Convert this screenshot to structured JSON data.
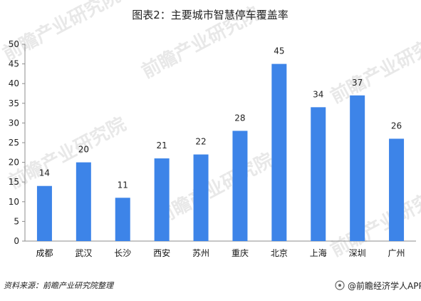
{
  "chart_data": {
    "type": "bar",
    "title": "图表2：主要城市智慧停车覆盖率",
    "xlabel": "",
    "ylabel": "",
    "categories": [
      "成都",
      "武汉",
      "长沙",
      "西安",
      "苏州",
      "重庆",
      "北京",
      "上海",
      "深圳",
      "广州"
    ],
    "series": [
      {
        "values": [
          14,
          20,
          11,
          21,
          22,
          28,
          45,
          34,
          37,
          26
        ]
      }
    ],
    "ylim": [
      0,
      50
    ],
    "yticks": [
      "0",
      "5",
      "10",
      "15",
      "20",
      "25",
      "30",
      "35",
      "40",
      "45",
      "50"
    ],
    "data_labels": [
      "14",
      "20",
      "11",
      "21",
      "22",
      "28",
      "45",
      "34",
      "37",
      "26"
    ],
    "bar_color": "#3d84e8",
    "grid": false,
    "legend": "none"
  },
  "footer": {
    "source": "资料来源：前瞻产业研究院整理",
    "brand": "@前瞻经济学人APP"
  },
  "watermark": {
    "text": "前瞻产业研究院"
  },
  "colors": {
    "background": "#ffffff",
    "axis": "#8c8c8c",
    "watermark": "#d7d7d7"
  }
}
